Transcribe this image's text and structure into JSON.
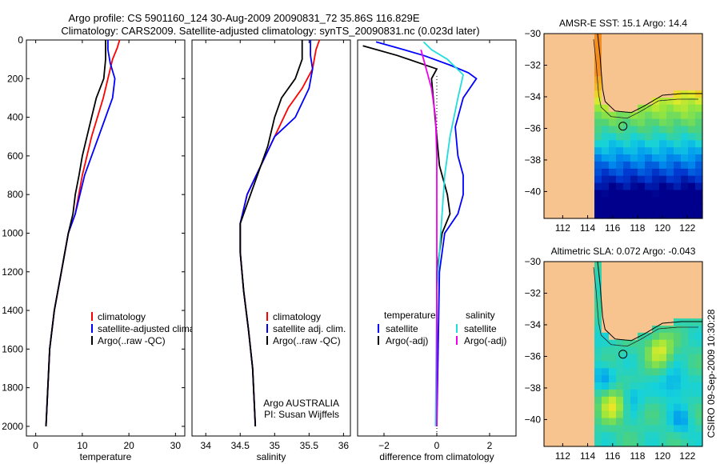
{
  "header": {
    "line1": "Argo profile: CS 5901160_124 30-Aug-2009 20090831_72 35.86S 116.829E",
    "line2": "Climatology: CARS2009. Satellite-adjusted climatology: synTS_20090831.nc (0.023d later)"
  },
  "side_label": "CSIRO 09-Sep-2009 10:30:28",
  "colors": {
    "red": "#ff0000",
    "blue": "#0000ff",
    "black": "#000000",
    "cyan": "#22dddd",
    "magenta": "#ee00ee",
    "land": "#f7c38f"
  },
  "chart_data": [
    {
      "type": "line",
      "xlabel": "temperature",
      "xlim": [
        -2,
        32
      ],
      "ylim": [
        2050,
        0
      ],
      "xticks": [
        0,
        10,
        20,
        30
      ],
      "yticks": [
        0,
        200,
        400,
        600,
        800,
        1000,
        1200,
        1400,
        1600,
        1800,
        2000
      ],
      "legend": {
        "placement": "lower-right",
        "entries": [
          "climatology",
          "satellite-adjusted climatolog",
          "Argo(..raw -QC)"
        ]
      },
      "series": [
        {
          "name": "climatology",
          "color": "#ff0000",
          "points": [
            [
              18,
              0
            ],
            [
              17.5,
              40
            ],
            [
              16.5,
              100
            ],
            [
              15.5,
              200
            ],
            [
              14.5,
              300
            ],
            [
              12,
              500
            ],
            [
              10,
              700
            ],
            [
              8.5,
              900
            ],
            [
              7,
              1000
            ],
            [
              5.5,
              1200
            ],
            [
              4,
              1400
            ],
            [
              3,
              1600
            ],
            [
              2.6,
              1800
            ],
            [
              2.2,
              2000
            ]
          ]
        },
        {
          "name": "satellite-adjusted climatology",
          "color": "#0000ff",
          "points": [
            [
              15.5,
              0
            ],
            [
              15.5,
              50
            ],
            [
              16,
              120
            ],
            [
              17,
              200
            ],
            [
              16.5,
              300
            ],
            [
              13.5,
              500
            ],
            [
              10.5,
              700
            ],
            [
              8.5,
              900
            ],
            [
              7,
              1000
            ],
            [
              5.5,
              1200
            ],
            [
              4,
              1400
            ],
            [
              3,
              1600
            ],
            [
              2.6,
              1800
            ],
            [
              2.2,
              2000
            ]
          ]
        },
        {
          "name": "Argo(..raw -QC)",
          "color": "#000000",
          "points": [
            [
              15,
              0
            ],
            [
              15,
              100
            ],
            [
              14.6,
              200
            ],
            [
              13,
              300
            ],
            [
              12,
              400
            ],
            [
              11,
              500
            ],
            [
              10,
              600
            ],
            [
              9.3,
              700
            ],
            [
              8.5,
              800
            ],
            [
              8,
              900
            ],
            [
              7,
              1000
            ],
            [
              5.5,
              1200
            ],
            [
              4,
              1400
            ],
            [
              3,
              1600
            ],
            [
              2.6,
              1800
            ],
            [
              2.2,
              2000
            ]
          ]
        }
      ]
    },
    {
      "type": "line",
      "xlabel": "salinity",
      "xlim": [
        33.8,
        36.1
      ],
      "ylim": [
        2050,
        0
      ],
      "xticks": [
        34,
        34.5,
        35,
        35.5,
        36
      ],
      "yticks": [],
      "legend": {
        "placement": "lower-right",
        "entries": [
          "climatology",
          "satellite adj. clim.",
          "Argo(..raw -QC)"
        ]
      },
      "annotations": [
        "Argo AUSTRALIA",
        "PI: Susan Wijffels"
      ],
      "series": [
        {
          "name": "climatology",
          "color": "#ff0000",
          "points": [
            [
              35.65,
              0
            ],
            [
              35.6,
              50
            ],
            [
              35.55,
              150
            ],
            [
              35.4,
              250
            ],
            [
              35.2,
              350
            ],
            [
              35.0,
              500
            ],
            [
              34.8,
              650
            ],
            [
              34.6,
              800
            ],
            [
              34.5,
              950
            ],
            [
              34.5,
              1100
            ],
            [
              34.55,
              1300
            ],
            [
              34.62,
              1500
            ],
            [
              34.68,
              1700
            ],
            [
              34.72,
              2000
            ]
          ]
        },
        {
          "name": "satellite adj. clim.",
          "color": "#0000ff",
          "points": [
            [
              35.52,
              0
            ],
            [
              35.52,
              80
            ],
            [
              35.55,
              150
            ],
            [
              35.5,
              250
            ],
            [
              35.3,
              400
            ],
            [
              35.0,
              500
            ],
            [
              34.8,
              650
            ],
            [
              34.6,
              800
            ],
            [
              34.5,
              950
            ],
            [
              34.5,
              1100
            ],
            [
              34.55,
              1300
            ],
            [
              34.62,
              1500
            ],
            [
              34.68,
              1700
            ],
            [
              34.72,
              2000
            ]
          ]
        },
        {
          "name": "Argo(..raw -QC)",
          "color": "#000000",
          "points": [
            [
              35.4,
              0
            ],
            [
              35.4,
              100
            ],
            [
              35.3,
              200
            ],
            [
              35.1,
              300
            ],
            [
              35.0,
              400
            ],
            [
              34.9,
              550
            ],
            [
              34.75,
              700
            ],
            [
              34.6,
              850
            ],
            [
              34.5,
              950
            ],
            [
              34.5,
              1100
            ],
            [
              34.55,
              1300
            ],
            [
              34.62,
              1500
            ],
            [
              34.68,
              1700
            ],
            [
              34.72,
              2000
            ]
          ]
        }
      ]
    },
    {
      "type": "line",
      "xlabel": "difference from climatology",
      "xlim": [
        -3,
        3
      ],
      "ylim": [
        2050,
        0
      ],
      "xticks": [
        -2,
        0,
        2
      ],
      "yticks": [],
      "legend": {
        "placement": "lower-center",
        "headers": [
          "temperature",
          "salinity"
        ],
        "entries": [
          "satellite",
          "Argo(-adj)",
          "satellite",
          "Argo(-adj)"
        ]
      },
      "series": [
        {
          "name": "temperature satellite",
          "color": "#0000ff",
          "points": [
            [
              -2.3,
              10
            ],
            [
              -1.5,
              40
            ],
            [
              -0.5,
              80
            ],
            [
              0.5,
              130
            ],
            [
              1.2,
              170
            ],
            [
              1.5,
              200
            ],
            [
              1.0,
              300
            ],
            [
              0.7,
              450
            ],
            [
              0.8,
              600
            ],
            [
              1.0,
              700
            ],
            [
              1.0,
              800
            ],
            [
              0.8,
              900
            ],
            [
              0.3,
              1000
            ],
            [
              0.1,
              1200
            ],
            [
              0,
              2000
            ]
          ]
        },
        {
          "name": "temperature Argo(-adj)",
          "color": "#000000",
          "points": [
            [
              -2.8,
              30
            ],
            [
              -1.5,
              80
            ],
            [
              0,
              150
            ],
            [
              -0.2,
              200
            ],
            [
              -0.1,
              350
            ],
            [
              0,
              500
            ],
            [
              0.1,
              650
            ],
            [
              0.4,
              800
            ],
            [
              0.5,
              900
            ],
            [
              0.2,
              1000
            ],
            [
              0,
              1200
            ],
            [
              0,
              2000
            ]
          ]
        },
        {
          "name": "salinity satellite",
          "color": "#22dddd",
          "points": [
            [
              -0.5,
              10
            ],
            [
              -0.2,
              50
            ],
            [
              0.4,
              100
            ],
            [
              1.0,
              180
            ],
            [
              0.8,
              300
            ],
            [
              0.5,
              500
            ],
            [
              0.3,
              700
            ],
            [
              0.2,
              900
            ],
            [
              0.1,
              1100
            ],
            [
              0,
              1300
            ],
            [
              -0.05,
              2000
            ]
          ]
        },
        {
          "name": "salinity Argo(-adj)",
          "color": "#ee00ee",
          "points": [
            [
              -0.6,
              50
            ],
            [
              -0.4,
              150
            ],
            [
              -0.2,
              250
            ],
            [
              -0.05,
              400
            ],
            [
              0,
              600
            ],
            [
              0,
              1000
            ],
            [
              0,
              1400
            ],
            [
              0,
              2000
            ]
          ]
        }
      ]
    },
    {
      "type": "heatmap",
      "title": "AMSR-E SST: 15.1 Argo: 14.4",
      "xlim": [
        110.5,
        123.2
      ],
      "ylim": [
        -41.7,
        -30
      ],
      "xticks": [
        112,
        114,
        116,
        118,
        120,
        122
      ],
      "yticks": [
        -30,
        -32,
        -34,
        -36,
        -38,
        -40
      ],
      "marker": {
        "lon": 116.83,
        "lat": -35.86
      }
    },
    {
      "type": "heatmap",
      "title": "Altimetric SLA: 0.072 Argo: -0.043",
      "xlim": [
        110.5,
        123.2
      ],
      "ylim": [
        -41.7,
        -30
      ],
      "xticks": [
        112,
        114,
        116,
        118,
        120,
        122
      ],
      "yticks": [
        -30,
        -32,
        -34,
        -36,
        -38,
        -40
      ],
      "marker": {
        "lon": 116.83,
        "lat": -35.86
      }
    }
  ]
}
